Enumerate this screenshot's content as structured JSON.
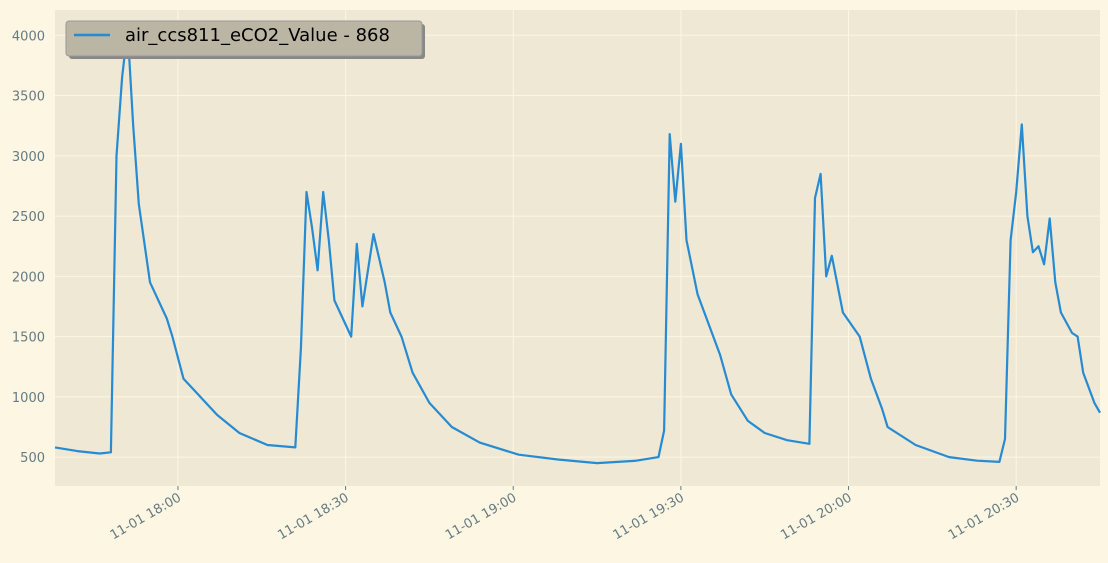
{
  "chart_data": {
    "type": "line",
    "x": [
      "11-01 17:38",
      "11-01 17:42",
      "11-01 17:46",
      "11-01 17:48",
      "11-01 17:49",
      "11-01 17:50",
      "11-01 17:51",
      "11-01 17:52",
      "11-01 17:53",
      "11-01 17:55",
      "11-01 17:58",
      "11-01 17:59",
      "11-01 18:01",
      "11-01 18:03",
      "11-01 18:07",
      "11-01 18:11",
      "11-01 18:16",
      "11-01 18:21",
      "11-01 18:22",
      "11-01 18:23",
      "11-01 18:24",
      "11-01 18:25",
      "11-01 18:26",
      "11-01 18:27",
      "11-01 18:28",
      "11-01 18:31",
      "11-01 18:32",
      "11-01 18:33",
      "11-01 18:35",
      "11-01 18:37",
      "11-01 18:38",
      "11-01 18:40",
      "11-01 18:42",
      "11-01 18:45",
      "11-01 18:49",
      "11-01 18:54",
      "11-01 19:01",
      "11-01 19:08",
      "11-01 19:15",
      "11-01 19:22",
      "11-01 19:26",
      "11-01 19:27",
      "11-01 19:28",
      "11-01 19:29",
      "11-01 19:30",
      "11-01 19:31",
      "11-01 19:33",
      "11-01 19:37",
      "11-01 19:39",
      "11-01 19:42",
      "11-01 19:45",
      "11-01 19:49",
      "11-01 19:53",
      "11-01 19:54",
      "11-01 19:55",
      "11-01 19:56",
      "11-01 19:57",
      "11-01 19:59",
      "11-01 20:02",
      "11-01 20:04",
      "11-01 20:06",
      "11-01 20:07",
      "11-01 20:12",
      "11-01 20:18",
      "11-01 20:23",
      "11-01 20:27",
      "11-01 20:28",
      "11-01 20:29",
      "11-01 20:30",
      "11-01 20:31",
      "11-01 20:32",
      "11-01 20:33",
      "11-01 20:34",
      "11-01 20:35",
      "11-01 20:36",
      "11-01 20:37",
      "11-01 20:38",
      "11-01 20:40",
      "11-01 20:41",
      "11-01 20:42",
      "11-01 20:44",
      "11-01 20:45"
    ],
    "series": [
      {
        "name": "air_ccs811_eCO2_Value - 868",
        "color": "#268bd2",
        "values": [
          580,
          550,
          530,
          540,
          3000,
          3650,
          4050,
          3250,
          2600,
          1950,
          1650,
          1500,
          1150,
          1050,
          850,
          700,
          600,
          580,
          1400,
          2700,
          2400,
          2050,
          2700,
          2300,
          1800,
          1500,
          2270,
          1750,
          2350,
          1950,
          1700,
          1500,
          1200,
          950,
          750,
          620,
          520,
          480,
          450,
          470,
          500,
          720,
          3180,
          2620,
          3100,
          2300,
          1850,
          1350,
          1020,
          800,
          700,
          640,
          610,
          2650,
          2850,
          2000,
          2170,
          1700,
          1500,
          1150,
          900,
          750,
          600,
          500,
          470,
          460,
          650,
          2300,
          2700,
          3260,
          2500,
          2200,
          2250,
          2100,
          2480,
          1950,
          1700,
          1530,
          1500,
          1200,
          950,
          868
        ]
      }
    ],
    "xlim": [
      "11-01 17:38",
      "11-01 20:45"
    ],
    "xticks": [
      "11-01 18:00",
      "11-01 18:30",
      "11-01 19:00",
      "11-01 19:30",
      "11-01 20:00",
      "11-01 20:30"
    ],
    "ylim": [
      260,
      4210
    ],
    "yticks": [
      500,
      1000,
      1500,
      2000,
      2500,
      3000,
      3500,
      4000
    ],
    "grid": true,
    "legend": "upper left"
  }
}
